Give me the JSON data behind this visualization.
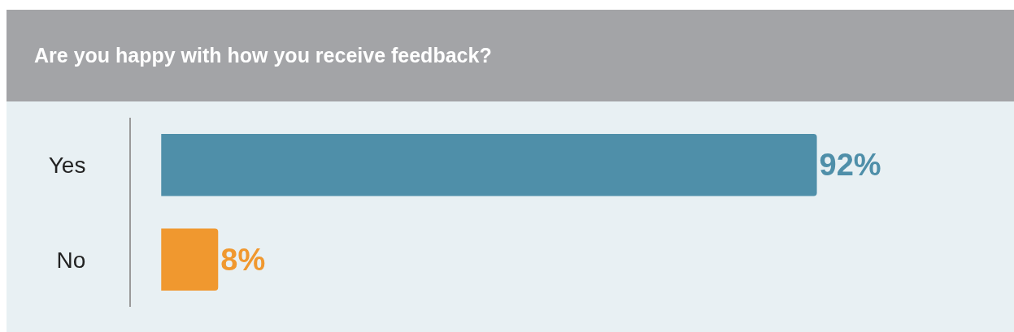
{
  "chart_data": {
    "type": "bar",
    "orientation": "horizontal",
    "title": "Are you happy with how you receive feedback?",
    "categories": [
      "Yes",
      "No"
    ],
    "values": [
      92,
      8
    ],
    "colors": [
      "#4f8fa9",
      "#f0982f"
    ],
    "value_labels": [
      "92%",
      "8%"
    ],
    "tick_labels": "y",
    "grid": false,
    "legend": false
  }
}
